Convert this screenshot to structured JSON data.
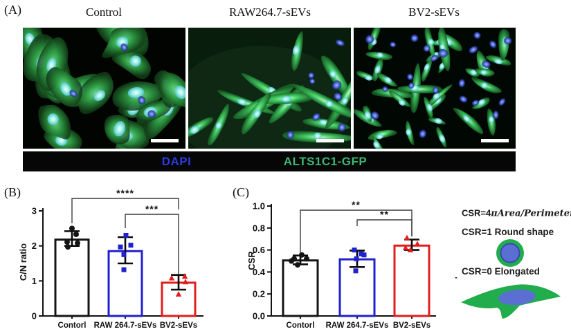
{
  "figure_labels": {
    "a": "(A)",
    "b": "(B)",
    "c": "(C)"
  },
  "panel_a": {
    "titles": [
      "Control",
      "RAW264.7-sEVs",
      "BV2-sEVs"
    ],
    "legend": {
      "dapi_label": "DAPI",
      "gfp_label": "ALTS1C1-GFP",
      "dapi_color": "#2a3ce0",
      "gfp_color": "#3bb873"
    }
  },
  "annotation": {
    "formula": {
      "prefix": "CSR=4",
      "math": "πArea/Perimeter",
      "sup": "2"
    },
    "round_shape_label": "CSR=1 Round shape",
    "elongated_label": "CSR=0 Elongated",
    "dash": "-",
    "cell_green": "#22ad4c",
    "nucleus_blue": "#5b6fd3",
    "nucleus_blue_edge": "#3949ad"
  },
  "chart_data": [
    {
      "id": "b",
      "type": "bar",
      "title": "",
      "xlabel": "",
      "ylabel": "C/N ratio",
      "categories": [
        "Contorl",
        "RAW 264.7-sEVs",
        "BV2-sEVs"
      ],
      "values": [
        2.18,
        1.85,
        0.95
      ],
      "bar_colors": [
        "#141414",
        "#2020cf",
        "#e21d1d"
      ],
      "error_bars": [
        {
          "low": 2.0,
          "high": 2.42
        },
        {
          "low": 1.5,
          "high": 2.25
        },
        {
          "low": 0.75,
          "high": 1.17
        }
      ],
      "points": [
        [
          2.5,
          2.33,
          2.11,
          2.08,
          1.97
        ],
        [
          2.3,
          2.02,
          1.97,
          1.75,
          1.32
        ],
        [
          1.08,
          1.13,
          0.97,
          0.62
        ]
      ],
      "markers": [
        "circle",
        "square",
        "triangle"
      ],
      "ylim": [
        0,
        3
      ],
      "yticks": [
        0,
        1,
        2,
        3
      ],
      "ytick_labels": [
        "0",
        "1",
        "2",
        "3"
      ],
      "grid": false,
      "legend_position": "none",
      "significance": [
        {
          "from": 0,
          "to": 2,
          "label": "****"
        },
        {
          "from": 1,
          "to": 2,
          "label": "***"
        }
      ]
    },
    {
      "id": "c",
      "type": "bar",
      "title": "",
      "xlabel": "",
      "ylabel": "CSR",
      "categories": [
        "Contorl",
        "RAW 264.7-sEVs",
        "BV2-sEVs"
      ],
      "values": [
        0.505,
        0.515,
        0.64
      ],
      "bar_colors": [
        "#141414",
        "#2020cf",
        "#e21d1d"
      ],
      "error_bars": [
        {
          "low": 0.47,
          "high": 0.55
        },
        {
          "low": 0.445,
          "high": 0.595
        },
        {
          "low": 0.6,
          "high": 0.695
        }
      ],
      "points": [
        [
          0.555,
          0.52,
          0.52,
          0.5,
          0.465
        ],
        [
          0.6,
          0.565,
          0.555,
          0.52,
          0.41
        ],
        [
          0.71,
          0.655,
          0.62,
          0.6
        ]
      ],
      "markers": [
        "circle",
        "square",
        "triangle"
      ],
      "ylim": [
        0,
        1
      ],
      "yticks": [
        0,
        0.2,
        0.4,
        0.6,
        0.8,
        1.0
      ],
      "ytick_labels": [
        "0.0",
        "0.2",
        "0.4",
        "0.6",
        "0.8",
        "1.0"
      ],
      "grid": false,
      "legend_position": "none",
      "significance": [
        {
          "from": 0,
          "to": 2,
          "label": "**"
        },
        {
          "from": 1,
          "to": 2,
          "label": "**"
        }
      ]
    }
  ]
}
